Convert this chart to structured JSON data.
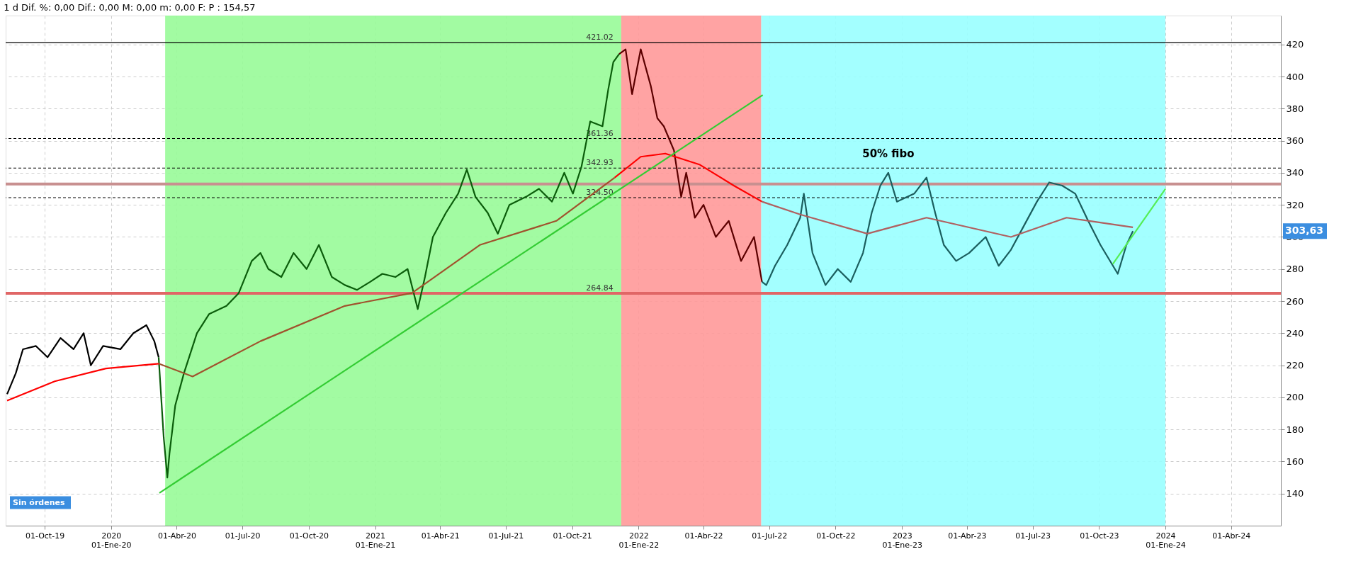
{
  "chart_data": {
    "type": "line",
    "title": "1 d  Dif. %: 0,00  Dif.: 0,00  M: 0,00  m: 0,00  F:  P : 154,57",
    "xlim": [
      "2019-08-08",
      "2024-06-09"
    ],
    "ylim": [
      120,
      438
    ],
    "xticks": [
      {
        "value": "2019-10-01",
        "label": "01-Oct-19"
      },
      {
        "value": "2020-01-01",
        "label": "2020\n01-Ene-20"
      },
      {
        "value": "2020-04-01",
        "label": "01-Abr-20"
      },
      {
        "value": "2020-07-01",
        "label": "01-Jul-20"
      },
      {
        "value": "2020-10-01",
        "label": "01-Oct-20"
      },
      {
        "value": "2021-01-01",
        "label": "2021\n01-Ene-21"
      },
      {
        "value": "2021-04-01",
        "label": "01-Abr-21"
      },
      {
        "value": "2021-07-01",
        "label": "01-Jul-21"
      },
      {
        "value": "2021-10-01",
        "label": "01-Oct-21"
      },
      {
        "value": "2022-01-01",
        "label": "2022\n01-Ene-22"
      },
      {
        "value": "2022-04-01",
        "label": "01-Abr-22"
      },
      {
        "value": "2022-07-01",
        "label": "01-Jul-22"
      },
      {
        "value": "2022-10-01",
        "label": "01-Oct-22"
      },
      {
        "value": "2023-01-01",
        "label": "2023\n01-Ene-23"
      },
      {
        "value": "2023-04-01",
        "label": "01-Abr-23"
      },
      {
        "value": "2023-07-01",
        "label": "01-Jul-23"
      },
      {
        "value": "2023-10-01",
        "label": "01-Oct-23"
      },
      {
        "value": "2024-01-01",
        "label": "2024\n01-Ene-24"
      },
      {
        "value": "2024-04-01",
        "label": "01-Abr-24"
      }
    ],
    "yticks": [
      140,
      160,
      180,
      200,
      220,
      240,
      260,
      280,
      300,
      320,
      340,
      360,
      380,
      400,
      420
    ],
    "grid": true,
    "line_style": "solid",
    "marker": "none",
    "bands": [
      {
        "axis": "x",
        "from": "2020-03-16",
        "to": "2021-12-08",
        "color": "#98fb98"
      },
      {
        "axis": "x",
        "from": "2021-12-08",
        "to": "2022-06-20",
        "color": "#ff9999"
      },
      {
        "axis": "x",
        "from": "2022-06-20",
        "to": "2024-01-01",
        "color": "#99ffff"
      }
    ],
    "ref_lines": [
      {
        "axis": "y",
        "value": 421.02,
        "label": "421.02",
        "color": "#000000",
        "line_style": "solid"
      },
      {
        "axis": "y",
        "value": 361.36,
        "label": "361.36",
        "color": "#000000",
        "line_style": "dashed"
      },
      {
        "axis": "y",
        "value": 342.93,
        "label": "342.93",
        "color": "#000000",
        "line_style": "dashed"
      },
      {
        "axis": "y",
        "value": 324.5,
        "label": "324.50",
        "color": "#000000",
        "line_style": "dashed"
      },
      {
        "axis": "y",
        "value": 264.84,
        "label": "264.84",
        "color": "#e06666",
        "line_style": "solid"
      },
      {
        "axis": "y",
        "value": 333,
        "color": "#c89090",
        "line_style": "solid"
      }
    ],
    "annotations": [
      {
        "text": "50% fibo",
        "x": "2022-12-13",
        "y": 345
      },
      "303,63",
      "Sin órdenes"
    ],
    "series": [
      {
        "color": "#000000",
        "x": [
          "2019-08-10",
          "2019-08-22",
          "2019-09-01",
          "2019-09-19",
          "2019-10-05",
          "2019-10-23",
          "2019-11-10",
          "2019-11-24",
          "2019-12-04",
          "2019-12-21",
          "2020-01-14",
          "2020-02-01",
          "2020-02-19",
          "2020-03-01",
          "2020-03-07"
        ],
        "values": [
          202,
          215,
          230,
          232,
          225,
          237,
          230,
          240,
          220,
          232,
          230,
          240,
          245,
          235,
          225
        ]
      },
      {
        "color": "#0b5d0b",
        "x": [
          "2020-03-07",
          "2020-03-14",
          "2020-03-19",
          "2020-03-22",
          "2020-03-30",
          "2020-04-11",
          "2020-04-29",
          "2020-05-16",
          "2020-06-09",
          "2020-06-26",
          "2020-07-14",
          "2020-07-26",
          "2020-08-06",
          "2020-08-24",
          "2020-09-10",
          "2020-09-28",
          "2020-10-15",
          "2020-11-02",
          "2020-11-20",
          "2020-12-07",
          "2020-12-25",
          "2021-01-11",
          "2021-01-29",
          "2021-02-15",
          "2021-03-01",
          "2021-03-11",
          "2021-03-22",
          "2021-04-09",
          "2021-04-26",
          "2021-05-08",
          "2021-05-20",
          "2021-06-06",
          "2021-06-20",
          "2021-07-06",
          "2021-07-29",
          "2021-08-16",
          "2021-09-03",
          "2021-09-20",
          "2021-10-02",
          "2021-10-14",
          "2021-10-26",
          "2021-11-12",
          "2021-11-20",
          "2021-11-27",
          "2021-12-05"
        ],
        "values": [
          225,
          175,
          150,
          165,
          195,
          215,
          240,
          252,
          257,
          265,
          285,
          290,
          280,
          275,
          290,
          280,
          295,
          275,
          270,
          267,
          272,
          277,
          275,
          280,
          255,
          275,
          300,
          315,
          327,
          342,
          325,
          315,
          302,
          320,
          325,
          330,
          322,
          340,
          327,
          344,
          372,
          369,
          392,
          409,
          414
        ]
      },
      {
        "color": "#5c0000",
        "x": [
          "2021-12-05",
          "2021-12-14",
          "2021-12-23",
          "2022-01-04",
          "2022-01-18",
          "2022-01-27",
          "2022-02-05",
          "2022-02-19",
          "2022-03-01",
          "2022-03-08",
          "2022-03-20",
          "2022-04-01",
          "2022-04-18",
          "2022-05-06",
          "2022-05-23",
          "2022-06-10",
          "2022-06-21"
        ],
        "values": [
          414,
          417,
          389,
          417,
          394,
          374,
          369,
          354,
          325,
          340,
          312,
          320,
          300,
          310,
          285,
          300,
          272
        ]
      },
      {
        "color": "#1b5e5e",
        "x": [
          "2022-06-21",
          "2022-06-27",
          "2022-07-09",
          "2022-07-26",
          "2022-08-13",
          "2022-08-18",
          "2022-08-30",
          "2022-09-17",
          "2022-10-04",
          "2022-10-22",
          "2022-11-08",
          "2022-11-20",
          "2022-12-02",
          "2022-12-13",
          "2022-12-25",
          "2023-01-18",
          "2023-02-04",
          "2023-02-16",
          "2023-02-28",
          "2023-03-17",
          "2023-04-04",
          "2023-04-27",
          "2023-05-15",
          "2023-06-01",
          "2023-06-19",
          "2023-07-07",
          "2023-07-24",
          "2023-08-11",
          "2023-08-29",
          "2023-09-16",
          "2023-10-03",
          "2023-10-27",
          "2023-11-08",
          "2023-11-17"
        ],
        "values": [
          272,
          270,
          282,
          295,
          312,
          327,
          290,
          270,
          280,
          272,
          290,
          315,
          332,
          340,
          322,
          327,
          337,
          315,
          295,
          285,
          290,
          300,
          282,
          292,
          307,
          322,
          334,
          332,
          327,
          310,
          295,
          277,
          295,
          303.63
        ]
      },
      {
        "color": "#ff0000",
        "x": [
          "2019-08-10",
          "2019-10-15",
          "2019-12-25",
          "2020-03-07"
        ],
        "values": [
          198,
          210,
          218,
          221
        ]
      },
      {
        "color": "#a0522d",
        "x": [
          "2020-03-07",
          "2020-04-23",
          "2020-07-26",
          "2020-11-20",
          "2021-02-21",
          "2021-05-26",
          "2021-09-09",
          "2021-11-29"
        ],
        "values": [
          221,
          213,
          235,
          257,
          265,
          295,
          310,
          337
        ]
      },
      {
        "color": "#ff0000",
        "x": [
          "2021-11-29",
          "2022-01-04",
          "2022-02-07",
          "2022-03-27",
          "2022-05-13",
          "2022-06-21"
        ],
        "values": [
          337,
          350,
          352,
          345,
          332,
          322
        ]
      },
      {
        "color": "#b06060",
        "x": [
          "2022-06-21",
          "2022-08-13",
          "2022-11-14",
          "2023-02-04",
          "2023-06-01",
          "2023-08-17",
          "2023-11-17"
        ],
        "values": [
          322,
          314,
          302,
          312,
          300,
          312,
          306
        ]
      },
      {
        "color": "#33cc33",
        "x": [
          "2020-03-08",
          "2022-06-22"
        ],
        "values": [
          140.4,
          388.5
        ]
      },
      {
        "color": "#55ee55",
        "x": [
          "2023-10-20",
          "2024-01-01"
        ],
        "values": [
          283,
          330
        ]
      }
    ]
  }
}
